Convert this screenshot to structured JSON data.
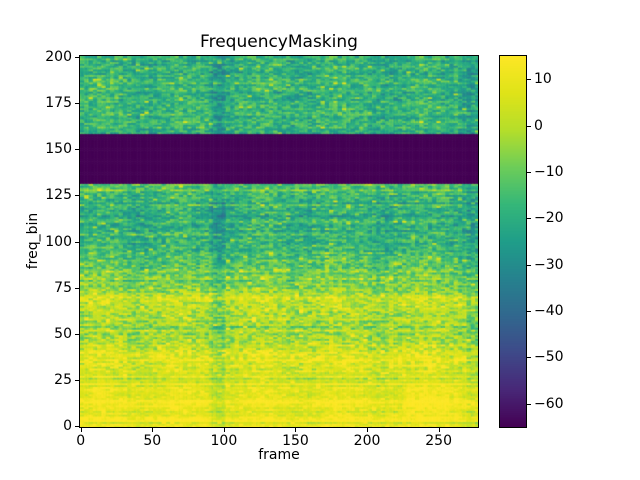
{
  "chart_data": {
    "type": "heatmap",
    "title": "FrequencyMasking",
    "xlabel": "frame",
    "ylabel": "freq_bin",
    "colormap": "viridis",
    "colormap_stops": [
      "#440154",
      "#482878",
      "#3e4a89",
      "#31688e",
      "#26828e",
      "#1f9e89",
      "#35b779",
      "#6dcd59",
      "#b5de2b",
      "#dfe318",
      "#fde725"
    ],
    "num_frames": 278,
    "num_bins": 201,
    "x_range": [
      0,
      277
    ],
    "y_range": [
      0,
      200
    ],
    "x_ticks": [
      0,
      50,
      100,
      150,
      200,
      250
    ],
    "y_ticks": [
      0,
      25,
      50,
      75,
      100,
      125,
      150,
      175,
      200
    ],
    "colorbar_ticks": [
      10,
      0,
      -10,
      -20,
      -30,
      -40,
      -50,
      -60
    ],
    "colorbar_tick_labels": [
      "10",
      "0",
      "−10",
      "−20",
      "−30",
      "−40",
      "−50",
      "−60"
    ],
    "value_range": [
      -65,
      15
    ],
    "masked_band": {
      "y_start": 132,
      "y_end": 158,
      "value": -65
    },
    "profile_anchors": [
      [
        0,
        8
      ],
      [
        5,
        10
      ],
      [
        12,
        11
      ],
      [
        20,
        8
      ],
      [
        28,
        3
      ],
      [
        35,
        5
      ],
      [
        45,
        -1
      ],
      [
        55,
        -6
      ],
      [
        68,
        1
      ],
      [
        78,
        -9
      ],
      [
        90,
        -15
      ],
      [
        105,
        -21
      ],
      [
        118,
        -22
      ],
      [
        131,
        -15
      ],
      [
        159,
        -20
      ],
      [
        172,
        -16
      ],
      [
        185,
        -21
      ],
      [
        200,
        -19
      ]
    ],
    "seed": 42
  }
}
